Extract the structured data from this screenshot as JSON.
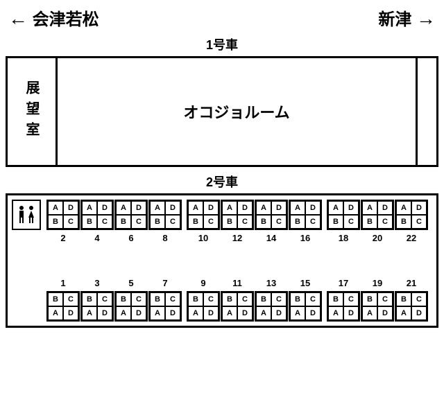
{
  "header": {
    "left_arrow": "←",
    "left_dest": "会津若松",
    "right_dest": "新津",
    "right_arrow": "→"
  },
  "car1": {
    "label": "1号車",
    "observation_room": "展望室",
    "main_room": "オコジョルーム"
  },
  "car2": {
    "label": "2号車",
    "restroom_icons": [
      "man",
      "woman"
    ],
    "top_seats": {
      "layout": [
        [
          "A",
          "D"
        ],
        [
          "B",
          "C"
        ]
      ],
      "numbers": [
        2,
        4,
        6,
        8,
        10,
        12,
        14,
        16,
        18,
        20,
        22
      ],
      "col_count": 11,
      "num_every": 1,
      "gap_after": [
        3,
        7
      ]
    },
    "bottom_seats": {
      "layout": [
        [
          "B",
          "C"
        ],
        [
          "A",
          "D"
        ]
      ],
      "numbers": [
        1,
        3,
        5,
        7,
        9,
        11,
        13,
        15,
        17,
        19,
        21
      ],
      "col_count": 11,
      "num_every": 1,
      "gap_after": [
        3,
        7
      ]
    },
    "seat_border_color": "#000000",
    "seat_bg": "#ffffff",
    "seat_fontsize": 11
  }
}
